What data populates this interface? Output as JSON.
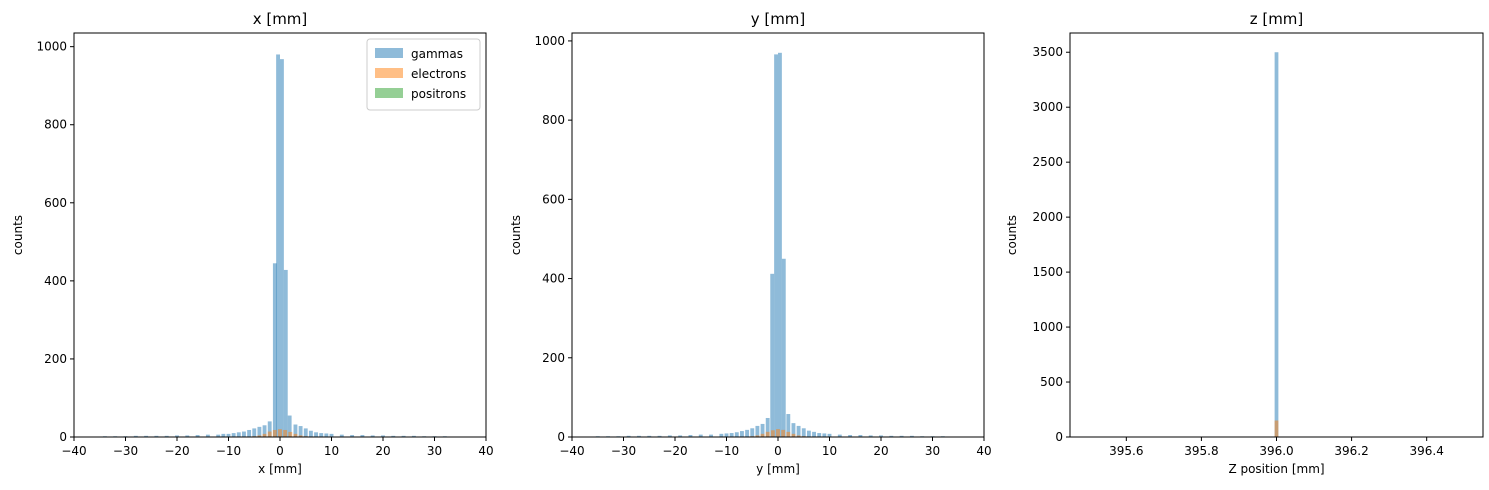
{
  "colors": {
    "gammas": "#1f77b4",
    "electrons": "#ff7f0e",
    "positrons": "#2ca02c"
  },
  "chart_data": [
    {
      "type": "bar",
      "histogram": true,
      "title": "x [mm]",
      "xlabel": "x [mm]",
      "ylabel": "counts",
      "xlim": [
        -40,
        40
      ],
      "ylim": [
        0,
        1035
      ],
      "xticks": [
        -40,
        -30,
        -20,
        -10,
        0,
        10,
        20,
        30,
        40
      ],
      "yticks": [
        0,
        200,
        400,
        600,
        800,
        1000
      ],
      "legend": {
        "position": "top-right",
        "entries": [
          "gammas",
          "electrons",
          "positrons"
        ]
      },
      "bin_width": 0.75,
      "series": [
        {
          "name": "gammas",
          "alpha": 0.5,
          "x": [
            -35,
            -34,
            -32,
            -30,
            -28,
            -26,
            -24,
            -22,
            -20,
            -18,
            -16,
            -14,
            -12,
            -11,
            -10,
            -9,
            -8,
            -7,
            -6,
            -5,
            -4,
            -3,
            -2,
            -1,
            -0.375,
            0.375,
            1.125,
            1.875,
            3,
            4,
            5,
            6,
            7,
            8,
            9,
            10,
            12,
            14,
            16,
            18,
            20,
            22,
            24,
            26,
            28,
            30,
            32,
            35
          ],
          "values": [
            1,
            2,
            2,
            2,
            3,
            3,
            3,
            3,
            4,
            4,
            5,
            6,
            6,
            8,
            8,
            10,
            12,
            14,
            18,
            22,
            26,
            30,
            40,
            445,
            980,
            968,
            428,
            55,
            32,
            28,
            22,
            16,
            12,
            10,
            9,
            8,
            6,
            5,
            5,
            4,
            4,
            3,
            3,
            3,
            2,
            2,
            2,
            1
          ]
        },
        {
          "name": "electrons",
          "alpha": 0.5,
          "x": [
            -6,
            -5,
            -4,
            -3,
            -2,
            -1,
            0,
            1,
            2,
            3,
            4,
            5,
            6
          ],
          "values": [
            1,
            2,
            4,
            8,
            14,
            18,
            20,
            18,
            13,
            8,
            4,
            2,
            1
          ]
        },
        {
          "name": "positrons",
          "alpha": 0.5,
          "x": [
            -1,
            0,
            1
          ],
          "values": [
            1,
            1,
            1
          ]
        }
      ]
    },
    {
      "type": "bar",
      "histogram": true,
      "title": "y [mm]",
      "xlabel": "y [mm]",
      "ylabel": "counts",
      "xlim": [
        -40,
        40
      ],
      "ylim": [
        0,
        1020
      ],
      "xticks": [
        -40,
        -30,
        -20,
        -10,
        0,
        10,
        20,
        30,
        40
      ],
      "yticks": [
        0,
        200,
        400,
        600,
        800,
        1000
      ],
      "bin_width": 0.75,
      "series": [
        {
          "name": "gammas",
          "alpha": 0.5,
          "x": [
            -37,
            -35,
            -33,
            -31,
            -29,
            -27,
            -25,
            -23,
            -21,
            -19,
            -17,
            -15,
            -13,
            -11,
            -10,
            -9,
            -8,
            -7,
            -6,
            -5,
            -4,
            -3,
            -2,
            -1.125,
            -0.375,
            0.375,
            1.125,
            2,
            3,
            4,
            5,
            6,
            7,
            8,
            9,
            10,
            12,
            14,
            16,
            18,
            20,
            22,
            24,
            26,
            28,
            30,
            32,
            36
          ],
          "values": [
            1,
            2,
            2,
            2,
            3,
            3,
            3,
            3,
            4,
            4,
            5,
            6,
            6,
            8,
            9,
            10,
            12,
            15,
            18,
            22,
            28,
            33,
            48,
            412,
            966,
            970,
            450,
            58,
            35,
            28,
            22,
            16,
            13,
            10,
            9,
            8,
            6,
            5,
            5,
            4,
            4,
            3,
            3,
            3,
            2,
            2,
            2,
            1
          ]
        },
        {
          "name": "electrons",
          "alpha": 0.5,
          "x": [
            -6,
            -5,
            -4,
            -3,
            -2,
            -1,
            0,
            1,
            2,
            3,
            4,
            5,
            6
          ],
          "values": [
            1,
            2,
            4,
            8,
            13,
            17,
            20,
            18,
            13,
            8,
            4,
            2,
            1
          ]
        },
        {
          "name": "positrons",
          "alpha": 0.5,
          "x": [
            0
          ],
          "values": [
            1
          ]
        }
      ]
    },
    {
      "type": "bar",
      "histogram": true,
      "title": "z [mm]",
      "xlabel": "Z position [mm]",
      "ylabel": "counts",
      "xlim": [
        395.45,
        396.55
      ],
      "ylim": [
        0,
        3675
      ],
      "xticks": [
        395.6,
        395.8,
        396.0,
        396.2,
        396.4
      ],
      "xtick_labels": [
        "395.6",
        "395.8",
        "396.0",
        "396.2",
        "396.4"
      ],
      "yticks": [
        0,
        500,
        1000,
        1500,
        2000,
        2500,
        3000,
        3500
      ],
      "bin_width": 0.01,
      "series": [
        {
          "name": "gammas",
          "alpha": 0.5,
          "x": [
            396.0
          ],
          "values": [
            3500
          ]
        },
        {
          "name": "electrons",
          "alpha": 0.5,
          "x": [
            396.0
          ],
          "values": [
            150
          ]
        },
        {
          "name": "positrons",
          "alpha": 0.5,
          "x": [
            396.0
          ],
          "values": [
            3
          ]
        }
      ]
    }
  ]
}
